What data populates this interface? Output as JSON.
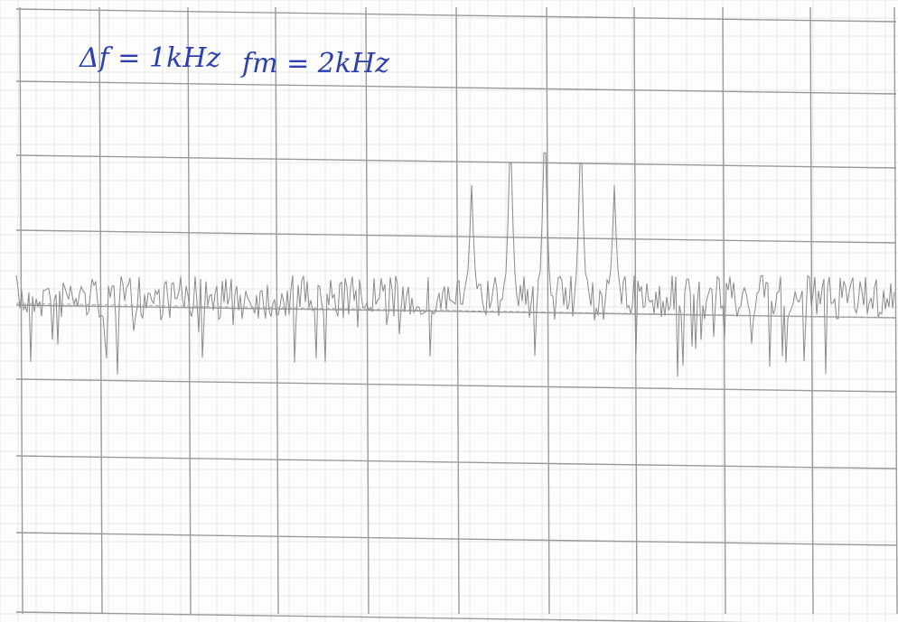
{
  "annotations": [
    "Δf = 1kHz",
    "fm = 2kHz"
  ]
}
